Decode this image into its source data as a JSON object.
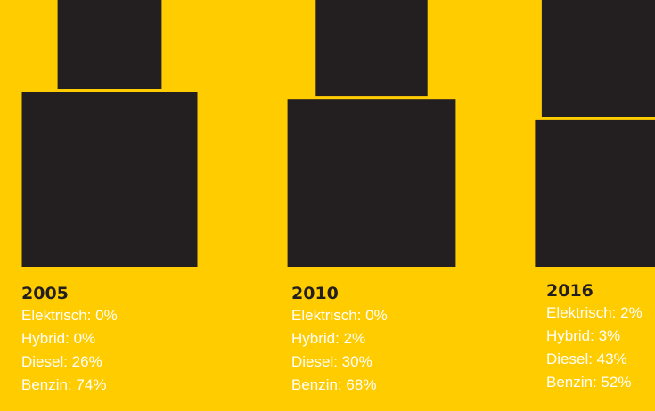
{
  "chart_data": {
    "type": "bar",
    "categories": [
      "2005",
      "2010",
      "2016"
    ],
    "series": [
      {
        "name": "Elektrisch",
        "values": [
          0,
          0,
          2
        ]
      },
      {
        "name": "Hybrid",
        "values": [
          0,
          2,
          3
        ]
      },
      {
        "name": "Diesel",
        "values": [
          26,
          30,
          43
        ]
      },
      {
        "name": "Benzin",
        "values": [
          74,
          68,
          52
        ]
      }
    ],
    "colors": {
      "Elektrisch": "#FFFFFF",
      "Hybrid": "#FFFFFF",
      "Diesel": "#231F20",
      "Benzin": "#231F20",
      "background": "#FFCC00"
    }
  },
  "labels": [
    {
      "year": "2005",
      "elektrisch": "Elektrisch: 0%",
      "hybrid": "Hybrid: 0%",
      "diesel": "Diesel: 26%",
      "benzin": "Benzin: 74%"
    },
    {
      "year": "2010",
      "elektrisch": "Elektrisch: 0%",
      "hybrid": "Hybrid: 2%",
      "diesel": "Diesel: 30%",
      "benzin": "Benzin: 68%"
    },
    {
      "year": "2016",
      "elektrisch": "Elektrisch: 2%",
      "hybrid": "Hybrid: 3%",
      "diesel": "Diesel: 43%",
      "benzin": "Benzin: 52%"
    }
  ]
}
